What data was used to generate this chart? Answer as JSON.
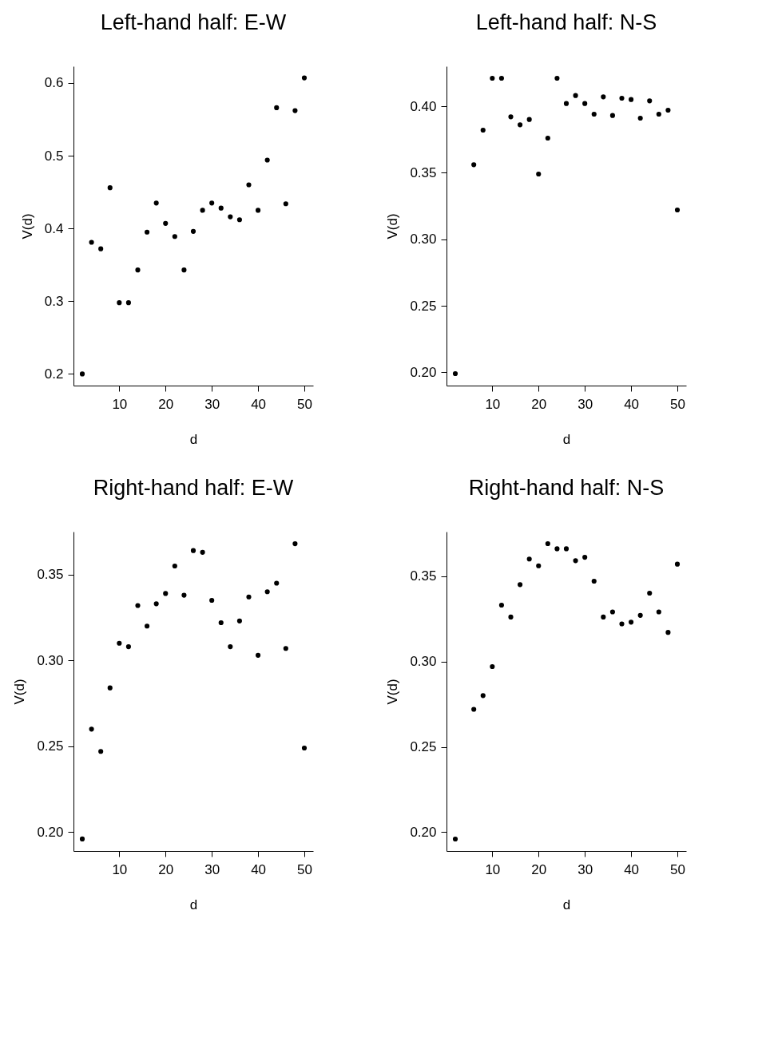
{
  "chart_data": [
    {
      "type": "scatter",
      "title": "Left-hand half: E-W",
      "xlabel": "d",
      "ylabel": "V(d)",
      "marker": "circle",
      "grid": false,
      "x": [
        2,
        4,
        6,
        8,
        10,
        12,
        14,
        16,
        18,
        20,
        22,
        24,
        26,
        28,
        30,
        32,
        34,
        36,
        38,
        40,
        42,
        44,
        46,
        48,
        50
      ],
      "series": [
        {
          "color": "#000000",
          "values": [
            0.2,
            0.381,
            0.372,
            0.456,
            0.298,
            0.298,
            0.343,
            0.395,
            0.435,
            0.407,
            0.389,
            0.343,
            0.396,
            0.425,
            0.435,
            0.428,
            0.416,
            0.412,
            0.46,
            0.425,
            0.494,
            0.566,
            0.434,
            0.562,
            0.607
          ]
        }
      ],
      "xlim": [
        0.1,
        51.9
      ],
      "ylim": [
        0.184,
        0.623
      ],
      "xticks": [
        10,
        20,
        30,
        40,
        50
      ],
      "yticks": [
        0.2,
        0.3,
        0.4,
        0.5,
        0.6
      ]
    },
    {
      "type": "scatter",
      "title": "Left-hand half: N-S",
      "xlabel": "d",
      "ylabel": "V(d)",
      "marker": "circle",
      "grid": false,
      "x": [
        2,
        4,
        6,
        8,
        10,
        12,
        14,
        16,
        18,
        20,
        22,
        24,
        26,
        28,
        30,
        32,
        34,
        36,
        38,
        40,
        42,
        44,
        46,
        48,
        50
      ],
      "series": [
        {
          "color": "#000000",
          "values": [
            0.199,
            null,
            0.356,
            0.382,
            0.421,
            0.421,
            0.392,
            0.386,
            0.39,
            0.349,
            0.376,
            0.421,
            0.402,
            0.408,
            0.402,
            0.394,
            0.407,
            0.393,
            0.406,
            0.405,
            0.391,
            0.404,
            0.394,
            0.397,
            0.322
          ]
        }
      ],
      "xlim": [
        0.1,
        51.9
      ],
      "ylim": [
        0.19,
        0.43
      ],
      "xticks": [
        10,
        20,
        30,
        40,
        50
      ],
      "yticks": [
        {
          "value": 0.2,
          "label": "0.20"
        },
        0.25,
        {
          "value": 0.3,
          "label": "0.30"
        },
        0.35,
        {
          "value": 0.4,
          "label": "0.40"
        }
      ]
    },
    {
      "type": "scatter",
      "title": "Right-hand half: E-W",
      "xlabel": "d",
      "ylabel": "V(d)",
      "marker": "circle",
      "grid": false,
      "x": [
        2,
        4,
        6,
        8,
        10,
        12,
        14,
        16,
        18,
        20,
        22,
        24,
        26,
        28,
        30,
        32,
        34,
        36,
        38,
        40,
        42,
        44,
        46,
        48,
        50
      ],
      "series": [
        {
          "color": "#000000",
          "values": [
            0.196,
            0.26,
            0.247,
            0.284,
            0.31,
            0.308,
            0.332,
            0.32,
            0.333,
            0.339,
            0.355,
            0.338,
            0.364,
            0.363,
            0.335,
            0.322,
            0.308,
            0.323,
            0.337,
            0.303,
            0.34,
            0.345,
            0.307,
            0.368,
            0.249
          ]
        }
      ],
      "xlim": [
        0.1,
        51.9
      ],
      "ylim": [
        0.189,
        0.375
      ],
      "xticks": [
        10,
        20,
        30,
        40,
        50
      ],
      "yticks": [
        {
          "value": 0.2,
          "label": "0.20"
        },
        0.25,
        {
          "value": 0.3,
          "label": "0.30"
        },
        0.35
      ]
    },
    {
      "type": "scatter",
      "title": "Right-hand half: N-S",
      "xlabel": "d",
      "ylabel": "V(d)",
      "marker": "circle",
      "grid": false,
      "x": [
        2,
        4,
        6,
        8,
        10,
        12,
        14,
        16,
        18,
        20,
        22,
        24,
        26,
        28,
        30,
        32,
        34,
        36,
        38,
        40,
        42,
        44,
        46,
        48,
        50
      ],
      "series": [
        {
          "color": "#000000",
          "values": [
            0.196,
            null,
            0.272,
            0.28,
            0.297,
            0.333,
            0.326,
            0.345,
            0.36,
            0.356,
            0.369,
            0.366,
            0.366,
            0.359,
            0.361,
            0.347,
            0.326,
            0.329,
            0.322,
            0.323,
            0.327,
            0.34,
            0.329,
            0.317,
            0.357
          ]
        }
      ],
      "xlim": [
        0.1,
        51.9
      ],
      "ylim": [
        0.189,
        0.376
      ],
      "xticks": [
        10,
        20,
        30,
        40,
        50
      ],
      "yticks": [
        {
          "value": 0.2,
          "label": "0.20"
        },
        0.25,
        {
          "value": 0.3,
          "label": "0.30"
        },
        0.35
      ]
    }
  ]
}
